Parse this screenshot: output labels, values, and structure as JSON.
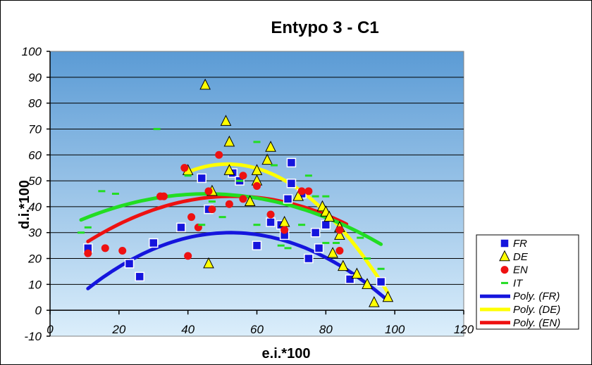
{
  "chart_data": {
    "type": "scatter",
    "title": "Entypo 3 - C1",
    "xlabel": "e.i.*100",
    "ylabel": "d.i.*100",
    "xlim": [
      0,
      120
    ],
    "ylim": [
      -10,
      100
    ],
    "x_ticks": [
      "0",
      "20",
      "40",
      "60",
      "80",
      "100",
      "120"
    ],
    "y_ticks": [
      "100",
      "90",
      "80",
      "70",
      "60",
      "50",
      "40",
      "30",
      "20",
      "10",
      "0",
      "-10"
    ],
    "grid": "horizontal",
    "legend_position": "right",
    "colors": {
      "plot_bg_top": "#5b9bd5",
      "plot_bg_bottom": "#dbeefb",
      "FR": "#1515dd",
      "DE": "#ffff00",
      "EN": "#ee1111",
      "IT": "#22dd22"
    },
    "series": [
      {
        "name": "FR",
        "marker": "square",
        "points": [
          [
            11,
            24
          ],
          [
            23,
            18
          ],
          [
            26,
            13
          ],
          [
            30,
            26
          ],
          [
            38,
            32
          ],
          [
            44,
            51
          ],
          [
            46,
            39
          ],
          [
            53,
            53
          ],
          [
            55,
            50
          ],
          [
            60,
            25
          ],
          [
            64,
            34
          ],
          [
            67,
            33
          ],
          [
            68,
            29
          ],
          [
            69,
            43
          ],
          [
            70,
            49
          ],
          [
            70,
            57
          ],
          [
            73,
            45
          ],
          [
            75,
            20
          ],
          [
            77,
            30
          ],
          [
            78,
            24
          ],
          [
            80,
            33
          ],
          [
            87,
            12
          ],
          [
            96,
            11
          ]
        ]
      },
      {
        "name": "DE",
        "marker": "triangle",
        "points": [
          [
            40,
            54
          ],
          [
            45,
            87
          ],
          [
            46,
            18
          ],
          [
            47,
            46
          ],
          [
            51,
            73
          ],
          [
            52,
            65
          ],
          [
            52,
            54
          ],
          [
            58,
            42
          ],
          [
            60,
            50
          ],
          [
            60,
            54
          ],
          [
            63,
            58
          ],
          [
            64,
            63
          ],
          [
            68,
            34
          ],
          [
            72,
            44
          ],
          [
            79,
            40
          ],
          [
            80,
            38
          ],
          [
            81,
            36
          ],
          [
            82,
            22
          ],
          [
            84,
            29
          ],
          [
            84,
            32
          ],
          [
            85,
            17
          ],
          [
            89,
            14
          ],
          [
            92,
            10
          ],
          [
            94,
            3
          ],
          [
            98,
            5
          ]
        ]
      },
      {
        "name": "EN",
        "marker": "circle",
        "points": [
          [
            11,
            22
          ],
          [
            16,
            24
          ],
          [
            21,
            23
          ],
          [
            32,
            44
          ],
          [
            33,
            44
          ],
          [
            39,
            55
          ],
          [
            40,
            21
          ],
          [
            41,
            36
          ],
          [
            43,
            32
          ],
          [
            46,
            46
          ],
          [
            47,
            39
          ],
          [
            49,
            60
          ],
          [
            52,
            41
          ],
          [
            56,
            52
          ],
          [
            56,
            43
          ],
          [
            60,
            48
          ],
          [
            64,
            37
          ],
          [
            68,
            31
          ],
          [
            73,
            46
          ],
          [
            75,
            46
          ],
          [
            84,
            23
          ],
          [
            84,
            31
          ]
        ]
      },
      {
        "name": "IT",
        "marker": "dash",
        "points": [
          [
            9,
            30
          ],
          [
            11,
            32
          ],
          [
            15,
            46
          ],
          [
            19,
            45
          ],
          [
            31,
            70
          ],
          [
            40,
            52
          ],
          [
            44,
            33
          ],
          [
            47,
            42
          ],
          [
            50,
            36
          ],
          [
            55,
            50
          ],
          [
            60,
            65
          ],
          [
            60,
            33
          ],
          [
            62,
            43
          ],
          [
            65,
            56
          ],
          [
            67,
            25
          ],
          [
            69,
            24
          ],
          [
            73,
            33
          ],
          [
            75,
            52
          ],
          [
            77,
            44
          ],
          [
            80,
            44
          ],
          [
            80,
            26
          ],
          [
            83,
            26
          ],
          [
            90,
            28
          ],
          [
            92,
            20
          ],
          [
            96,
            16
          ]
        ]
      }
    ],
    "trendlines": [
      {
        "name": "Poly. (FR)",
        "series": "FR",
        "type": "polynomial",
        "degree": 2,
        "x_range": [
          11,
          97
        ],
        "coefficients": [
          -0.0126,
          1.32,
          -4.6
        ]
      },
      {
        "name": "Poly. (DE)",
        "series": "DE",
        "type": "polynomial",
        "degree": 2,
        "x_range": [
          40,
          98
        ],
        "coefficients": [
          -0.023,
          2.37,
          -4.6
        ]
      },
      {
        "name": "Poly. (EN)",
        "series": "EN",
        "type": "polynomial",
        "degree": 2,
        "x_range": [
          11,
          86
        ],
        "coefficients": [
          -0.0099,
          1.05,
          16.2
        ]
      },
      {
        "name": "Poly. (IT)",
        "series": "IT",
        "type": "polynomial",
        "degree": 2,
        "x_range": [
          9,
          96
        ],
        "coefficients": [
          -0.0076,
          0.69,
          29.3
        ]
      }
    ],
    "legend_entries": [
      "FR",
      "DE",
      "EN",
      "IT",
      "Poly. (FR)",
      "Poly. (DE)",
      "Poly. (EN)"
    ]
  }
}
